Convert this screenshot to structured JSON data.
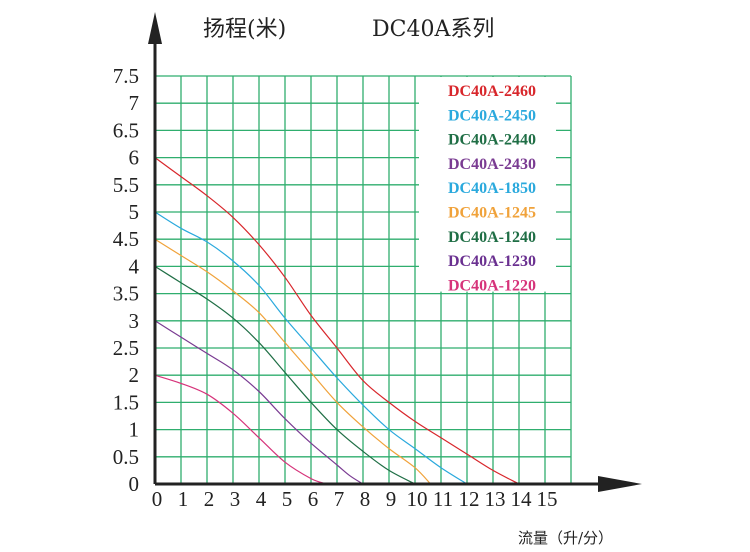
{
  "chart_data": {
    "type": "line",
    "title": "DC40A系列",
    "ylabel": "扬程(米)",
    "xlabel": "流量（升/分）",
    "xlim": [
      0,
      16
    ],
    "ylim": [
      0,
      7.5
    ],
    "x_ticks": [
      "0",
      "1",
      "2",
      "3",
      "4",
      "5",
      "6",
      "7",
      "8",
      "9",
      "10",
      "11",
      "12",
      "13",
      "14",
      "15"
    ],
    "y_ticks": [
      "0",
      "0.5",
      "1",
      "1.5",
      "2",
      "2.5",
      "3",
      "3.5",
      "4",
      "4.5",
      "5",
      "5.5",
      "6",
      "6.5",
      "7",
      "7.5"
    ],
    "grid": true,
    "legend_position": "top-right",
    "series": [
      {
        "name": "DC40A-2460",
        "color": "#d8262b",
        "points": [
          [
            0,
            6.0
          ],
          [
            1,
            5.65
          ],
          [
            2,
            5.3
          ],
          [
            3,
            4.9
          ],
          [
            4,
            4.4
          ],
          [
            5,
            3.8
          ],
          [
            6,
            3.1
          ],
          [
            7,
            2.5
          ],
          [
            8,
            1.9
          ],
          [
            9,
            1.5
          ],
          [
            10,
            1.15
          ],
          [
            11,
            0.85
          ],
          [
            12,
            0.55
          ],
          [
            13,
            0.25
          ],
          [
            14,
            0
          ]
        ]
      },
      {
        "name": "DC40A-2450",
        "color": "#2aa9dd",
        "points": [
          [
            0,
            5.0
          ],
          [
            1,
            4.7
          ],
          [
            2,
            4.45
          ],
          [
            3,
            4.1
          ],
          [
            4,
            3.65
          ],
          [
            5,
            3.05
          ],
          [
            6,
            2.5
          ],
          [
            7,
            1.95
          ],
          [
            8,
            1.45
          ],
          [
            9,
            1.0
          ],
          [
            10,
            0.65
          ],
          [
            11,
            0.3
          ],
          [
            12,
            0
          ]
        ]
      },
      {
        "name": "DC40A-2440",
        "color": "#1f6e45",
        "points": [
          [
            0,
            4.0
          ],
          [
            1,
            3.7
          ],
          [
            2,
            3.4
          ],
          [
            3,
            3.05
          ],
          [
            4,
            2.6
          ],
          [
            5,
            2.05
          ],
          [
            6,
            1.5
          ],
          [
            7,
            1.0
          ],
          [
            8,
            0.6
          ],
          [
            9,
            0.25
          ],
          [
            10,
            0
          ]
        ]
      },
      {
        "name": "DC40A-2430",
        "color": "#7a3b92",
        "points": [
          [
            0,
            3.0
          ],
          [
            1,
            2.7
          ],
          [
            2,
            2.4
          ],
          [
            3,
            2.1
          ],
          [
            4,
            1.7
          ],
          [
            5,
            1.2
          ],
          [
            6,
            0.75
          ],
          [
            7,
            0.35
          ],
          [
            7.5,
            0.15
          ],
          [
            8,
            0
          ]
        ]
      },
      {
        "name": "DC40A-1850",
        "color": "#2aa9dd",
        "points": []
      },
      {
        "name": "DC40A-1245",
        "color": "#f0a23a",
        "points": [
          [
            0,
            4.5
          ],
          [
            1,
            4.2
          ],
          [
            2,
            3.9
          ],
          [
            3,
            3.55
          ],
          [
            4,
            3.15
          ],
          [
            5,
            2.6
          ],
          [
            6,
            2.05
          ],
          [
            7,
            1.5
          ],
          [
            8,
            1.05
          ],
          [
            9,
            0.65
          ],
          [
            10,
            0.3
          ],
          [
            10.6,
            0
          ]
        ]
      },
      {
        "name": "DC40A-1240",
        "color": "#1f6e45",
        "points": []
      },
      {
        "name": "DC40A-1230",
        "color": "#6a3090",
        "points": []
      },
      {
        "name": "DC40A-1220",
        "color": "#d6337a",
        "points": [
          [
            0,
            2.0
          ],
          [
            1,
            1.85
          ],
          [
            2,
            1.65
          ],
          [
            3,
            1.3
          ],
          [
            4,
            0.85
          ],
          [
            5,
            0.4
          ],
          [
            6,
            0.1
          ],
          [
            6.6,
            0
          ]
        ]
      }
    ]
  },
  "colors": {
    "grid": "#2fae6e",
    "axis": "#222222"
  }
}
